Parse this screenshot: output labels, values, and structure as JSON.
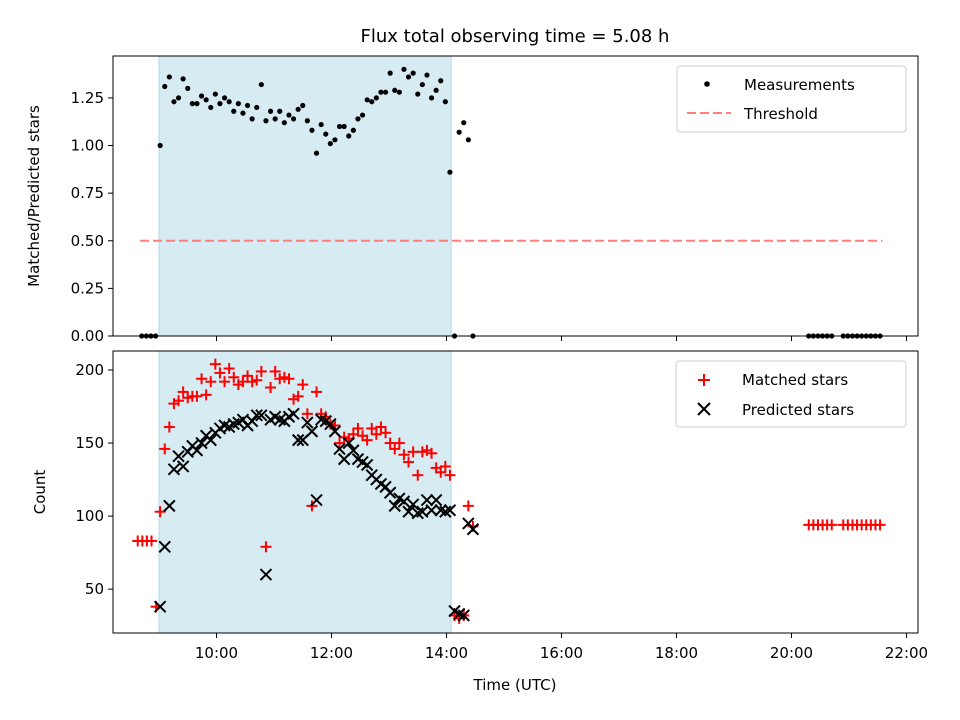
{
  "chart_data": [
    {
      "type": "scatter",
      "title": "Flux total observing time = 5.08 h",
      "xlabel": "",
      "ylabel": "Matched/Predicted stars",
      "xlim": [
        8.2,
        22.2
      ],
      "ylim": [
        0,
        1.47
      ],
      "yticks": [
        0.0,
        0.25,
        0.5,
        0.75,
        1.0,
        1.25
      ],
      "ytick_labels": [
        "0.00",
        "0.25",
        "0.50",
        "0.75",
        "1.00",
        "1.25"
      ],
      "shaded_span": [
        9.0,
        14.08
      ],
      "colors": {
        "measurements": "#000000",
        "threshold": "#ff7f7f",
        "span": "#add8e6"
      },
      "legend": {
        "placement": "top-right",
        "entries": [
          "Measurements",
          "Threshold"
        ]
      },
      "threshold": {
        "name": "Threshold",
        "value": 0.5,
        "x_range": [
          8.67,
          21.58
        ]
      },
      "series": [
        {
          "name": "Measurements",
          "x": [
            8.7,
            8.78,
            8.86,
            8.94,
            9.02,
            9.1,
            9.18,
            9.26,
            9.34,
            9.42,
            9.5,
            9.58,
            9.66,
            9.74,
            9.82,
            9.9,
            9.98,
            10.06,
            10.14,
            10.22,
            10.3,
            10.38,
            10.46,
            10.54,
            10.62,
            10.7,
            10.78,
            10.86,
            10.94,
            11.02,
            11.1,
            11.18,
            11.26,
            11.34,
            11.42,
            11.5,
            11.58,
            11.66,
            11.74,
            11.82,
            11.9,
            11.98,
            12.06,
            12.14,
            12.22,
            12.3,
            12.38,
            12.46,
            12.54,
            12.62,
            12.7,
            12.78,
            12.86,
            12.94,
            13.02,
            13.1,
            13.18,
            13.26,
            13.34,
            13.42,
            13.5,
            13.58,
            13.66,
            13.74,
            13.82,
            13.9,
            13.98,
            14.06,
            14.14,
            14.22,
            14.3,
            14.38,
            14.46,
            20.3,
            20.38,
            20.46,
            20.54,
            20.62,
            20.7,
            20.9,
            20.98,
            21.06,
            21.14,
            21.22,
            21.3,
            21.38,
            21.46,
            21.54
          ],
          "y": [
            0.0,
            0.0,
            0.0,
            0.0,
            1.0,
            1.31,
            1.36,
            1.23,
            1.25,
            1.35,
            1.3,
            1.22,
            1.22,
            1.26,
            1.24,
            1.2,
            1.27,
            1.22,
            1.25,
            1.23,
            1.18,
            1.22,
            1.17,
            1.21,
            1.14,
            1.2,
            1.32,
            1.13,
            1.18,
            1.14,
            1.18,
            1.12,
            1.16,
            1.14,
            1.19,
            1.21,
            1.13,
            1.08,
            0.96,
            1.11,
            1.06,
            1.01,
            1.03,
            1.1,
            1.1,
            1.05,
            1.08,
            1.14,
            1.16,
            1.24,
            1.23,
            1.25,
            1.28,
            1.28,
            1.38,
            1.29,
            1.28,
            1.4,
            1.36,
            1.38,
            1.27,
            1.32,
            1.37,
            1.25,
            1.29,
            1.34,
            1.23,
            0.86,
            0.0,
            1.07,
            1.12,
            1.03,
            0.0,
            0.0,
            0.0,
            0.0,
            0.0,
            0.0,
            0.0,
            0.0,
            0.0,
            0.0,
            0.0,
            0.0,
            0.0,
            0.0,
            0.0,
            0.0
          ]
        }
      ]
    },
    {
      "type": "scatter",
      "title": "",
      "xlabel": "Time (UTC)",
      "ylabel": "Count",
      "xlim": [
        8.2,
        22.2
      ],
      "ylim": [
        20,
        213
      ],
      "xticks": [
        10,
        12,
        14,
        16,
        18,
        20,
        22
      ],
      "xtick_labels": [
        "10:00",
        "12:00",
        "14:00",
        "16:00",
        "18:00",
        "20:00",
        "22:00"
      ],
      "yticks": [
        50,
        100,
        150,
        200
      ],
      "ytick_labels": [
        "50",
        "100",
        "150",
        "200"
      ],
      "shaded_span": [
        9.0,
        14.08
      ],
      "colors": {
        "matched": "#ff0000",
        "predicted": "#000000",
        "span": "#add8e6"
      },
      "legend": {
        "placement": "top-right",
        "entries": [
          "Matched stars",
          "Predicted stars"
        ]
      },
      "series": [
        {
          "name": "Matched stars",
          "marker": "plus",
          "x": [
            8.63,
            8.71,
            8.79,
            8.87,
            8.95,
            9.02,
            9.1,
            9.18,
            9.26,
            9.34,
            9.42,
            9.5,
            9.58,
            9.66,
            9.74,
            9.82,
            9.9,
            9.98,
            10.06,
            10.14,
            10.22,
            10.3,
            10.38,
            10.46,
            10.54,
            10.62,
            10.7,
            10.78,
            10.86,
            10.94,
            11.02,
            11.1,
            11.18,
            11.26,
            11.34,
            11.42,
            11.5,
            11.58,
            11.66,
            11.74,
            11.82,
            11.9,
            11.98,
            12.06,
            12.14,
            12.22,
            12.3,
            12.38,
            12.46,
            12.54,
            12.62,
            12.7,
            12.78,
            12.86,
            12.94,
            13.02,
            13.1,
            13.18,
            13.26,
            13.34,
            13.42,
            13.5,
            13.58,
            13.66,
            13.74,
            13.82,
            13.9,
            13.98,
            14.06,
            14.14,
            14.22,
            14.3,
            14.38,
            14.46,
            20.3,
            20.38,
            20.46,
            20.54,
            20.62,
            20.7,
            20.9,
            20.98,
            21.06,
            21.14,
            21.22,
            21.3,
            21.38,
            21.46,
            21.54
          ],
          "y": [
            83,
            83,
            83,
            83,
            38,
            103,
            146,
            161,
            177,
            179,
            185,
            181,
            182,
            182,
            194,
            183,
            192,
            204,
            198,
            192,
            201,
            195,
            190,
            192,
            196,
            192,
            193,
            199,
            79,
            188,
            199,
            194,
            195,
            194,
            180,
            182,
            190,
            170,
            107,
            185,
            170,
            168,
            163,
            162,
            150,
            154,
            153,
            156,
            160,
            155,
            152,
            160,
            156,
            161,
            157,
            150,
            146,
            150,
            142,
            137,
            144,
            128,
            144,
            145,
            143,
            133,
            130,
            134,
            128,
            32,
            30,
            32,
            107,
            93,
            94,
            94,
            94,
            94,
            94,
            94,
            94,
            94,
            94,
            94,
            94,
            94,
            94,
            94,
            94
          ]
        },
        {
          "name": "Predicted stars",
          "marker": "x",
          "x": [
            9.02,
            9.1,
            9.18,
            9.26,
            9.34,
            9.42,
            9.5,
            9.58,
            9.66,
            9.74,
            9.82,
            9.9,
            9.98,
            10.06,
            10.14,
            10.22,
            10.3,
            10.38,
            10.46,
            10.54,
            10.62,
            10.7,
            10.78,
            10.86,
            10.94,
            11.02,
            11.1,
            11.18,
            11.26,
            11.34,
            11.42,
            11.5,
            11.58,
            11.66,
            11.74,
            11.82,
            11.9,
            11.98,
            12.06,
            12.14,
            12.22,
            12.3,
            12.38,
            12.46,
            12.54,
            12.62,
            12.7,
            12.78,
            12.86,
            12.94,
            13.02,
            13.1,
            13.18,
            13.26,
            13.34,
            13.42,
            13.5,
            13.58,
            13.66,
            13.74,
            13.82,
            13.9,
            13.98,
            14.06,
            14.14,
            14.22,
            14.3,
            14.38,
            14.46
          ],
          "y": [
            38,
            79,
            107,
            132,
            141,
            134,
            144,
            148,
            145,
            150,
            155,
            152,
            157,
            160,
            162,
            161,
            163,
            164,
            166,
            162,
            165,
            169,
            169,
            60,
            166,
            168,
            166,
            165,
            168,
            170,
            152,
            152,
            164,
            158,
            111,
            166,
            165,
            163,
            158,
            146,
            139,
            150,
            145,
            139,
            137,
            135,
            128,
            125,
            122,
            120,
            116,
            107,
            112,
            110,
            103,
            108,
            102,
            103,
            111,
            104,
            111,
            104,
            103,
            104,
            35,
            33,
            32,
            95,
            91
          ]
        }
      ]
    }
  ]
}
